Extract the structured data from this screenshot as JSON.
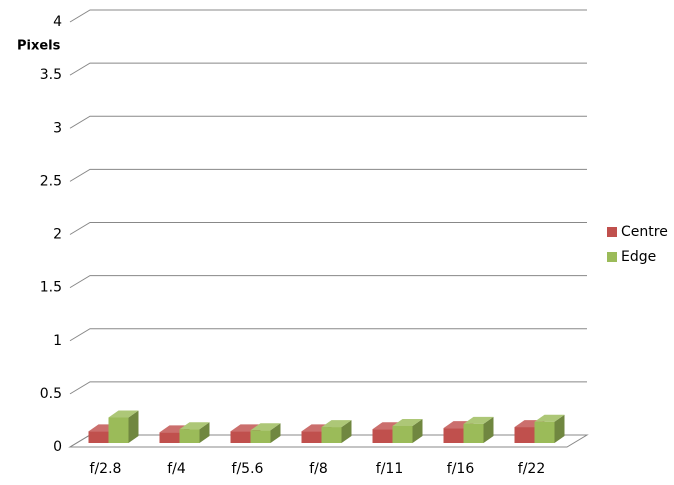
{
  "chart_data": {
    "type": "bar3d",
    "y_label": "Pixels",
    "categories": [
      "f/2.8",
      "f/4",
      "f/5.6",
      "f/8",
      "f/11",
      "f/16",
      "f/22"
    ],
    "series": [
      {
        "name": "Centre",
        "color": "#c0504d",
        "values": [
          0.11,
          0.1,
          0.11,
          0.11,
          0.13,
          0.14,
          0.15
        ]
      },
      {
        "name": "Edge",
        "color": "#9bbb59",
        "values": [
          0.24,
          0.13,
          0.12,
          0.15,
          0.16,
          0.18,
          0.2
        ]
      }
    ],
    "ylim": [
      0,
      4
    ],
    "yticks": [
      0,
      0.5,
      1,
      1.5,
      2,
      2.5,
      3,
      3.5,
      4
    ],
    "grid": true,
    "legend": "right"
  }
}
